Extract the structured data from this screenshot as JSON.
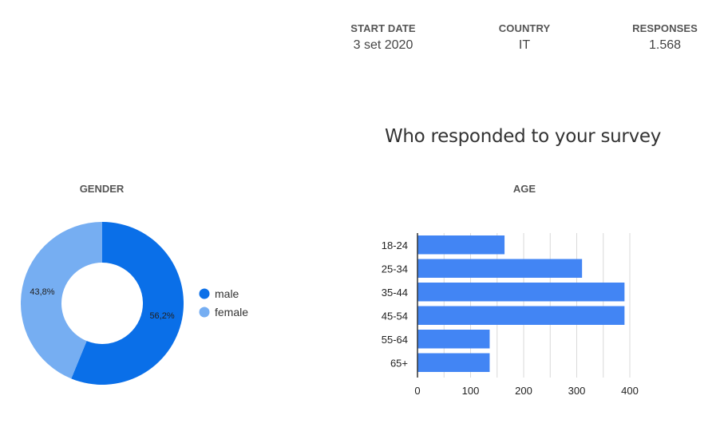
{
  "header": {
    "stats": [
      {
        "label": "START DATE",
        "value": "3 set 2020"
      },
      {
        "label": "COUNTRY",
        "value": "IT"
      },
      {
        "label": "RESPONSES",
        "value": "1.568"
      }
    ]
  },
  "title": "Who responded to your survey",
  "colors": {
    "male": "#0a6fe8",
    "female": "#76aef2",
    "bar": "#4285f4",
    "grid": "#d9d9d9",
    "axis": "#333333"
  },
  "chart_data": [
    {
      "type": "pie",
      "title": "GENDER",
      "labels": [
        "male",
        "female"
      ],
      "values": [
        56.2,
        43.8
      ],
      "value_labels": [
        "56,2%",
        "43,8%"
      ],
      "legend": "right"
    },
    {
      "type": "bar",
      "orientation": "horizontal",
      "title": "AGE",
      "categories": [
        "18-24",
        "25-34",
        "35-44",
        "45-54",
        "55-64",
        "65+"
      ],
      "values": [
        164,
        310,
        390,
        390,
        136,
        136
      ],
      "xlim": [
        0,
        400
      ],
      "xticks": [
        0,
        100,
        200,
        300,
        400
      ],
      "grid": true
    }
  ]
}
